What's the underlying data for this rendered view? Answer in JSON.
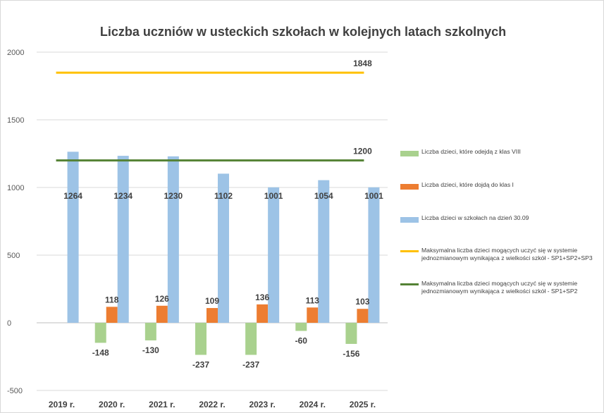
{
  "chart_data": {
    "type": "bar",
    "title": "Liczba  uczniów  w ustecki​ch  szkołach  w kolejnych  latach  szkolnych",
    "categories": [
      "2019 r.",
      "2020 r.",
      "2021 r.",
      "2022 r.",
      "2023 r.",
      "2024 r.",
      "2025 r."
    ],
    "ylim": [
      -500,
      2000
    ],
    "yticks": [
      -500,
      0,
      500,
      1000,
      1500,
      2000
    ],
    "grid": true,
    "legend_position": "right",
    "series": [
      {
        "name": "Liczba dzieci, które odejdą z klas VIII",
        "type": "bar",
        "color": "#a9d18e",
        "values": [
          null,
          -148,
          -130,
          -237,
          -237,
          -60,
          -156
        ]
      },
      {
        "name": "Liczba dzieci, które dojdą do klas I",
        "type": "bar",
        "color": "#ed7d31",
        "values": [
          null,
          118,
          126,
          109,
          136,
          113,
          103
        ]
      },
      {
        "name": "Liczba dzieci w szkołach na dzień 30.09",
        "type": "bar",
        "color": "#9dc3e6",
        "values": [
          1264,
          1234,
          1230,
          1102,
          1001,
          1054,
          1001
        ]
      },
      {
        "name": "Maksymalna liczba dzieci mogących uczyć się w systemie jednozmianowym wynikająca z wielkości szkół - SP1+SP2+SP3",
        "type": "line",
        "color": "#ffc000",
        "values": [
          1848,
          1848,
          1848,
          1848,
          1848,
          1848,
          1848
        ],
        "label": "1848"
      },
      {
        "name": "Maksymalna liczba dzieci mogących uczyć się w systemie jednozmianowym wynikająca z wielkości szkół - SP1+SP2",
        "type": "line",
        "color": "#548235",
        "values": [
          1200,
          1200,
          1200,
          1200,
          1200,
          1200,
          1200
        ],
        "label": "1200"
      }
    ]
  },
  "legend": {
    "items": [
      {
        "label": "Liczba dzieci, które odejdą z klas VIII",
        "color": "#a9d18e",
        "kind": "box"
      },
      {
        "label": "Liczba dzieci, które dojdą do klas I",
        "color": "#ed7d31",
        "kind": "box"
      },
      {
        "label": "Liczba dzieci w szkołach na dzień 30.09",
        "color": "#9dc3e6",
        "kind": "box"
      },
      {
        "label": "Maksymalna liczba dzieci mogących uczyć się w systemie jednozmianowym wynikająca z wielkości szkół - SP1+SP2+SP3",
        "color": "#ffc000",
        "kind": "line"
      },
      {
        "label": "Maksymalna liczba dzieci mogących uczyć się w systemie jednozmianowym wynikająca z wielkości szkół - SP1+SP2",
        "color": "#548235",
        "kind": "line"
      }
    ]
  }
}
